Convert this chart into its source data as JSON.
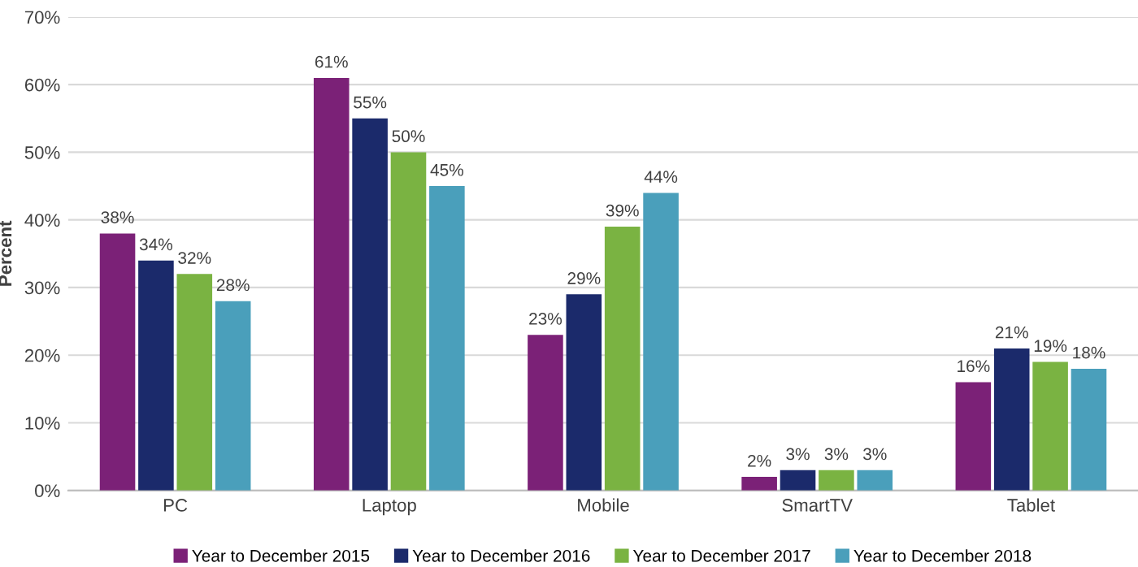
{
  "chart_data": {
    "type": "bar",
    "ylabel": "Percent",
    "categories": [
      "PC",
      "Laptop",
      "Mobile",
      "SmartTV",
      "Tablet"
    ],
    "series": [
      {
        "name": "Year to December 2015",
        "color": "#7b2177",
        "values": [
          38,
          61,
          23,
          2,
          16
        ],
        "value_labels": [
          "38%",
          "61%",
          "23%",
          "2%",
          "16%"
        ]
      },
      {
        "name": "Year to December 2016",
        "color": "#1b2a6b",
        "values": [
          34,
          55,
          29,
          3,
          21
        ],
        "value_labels": [
          "34%",
          "55%",
          "29%",
          "3%",
          "21%"
        ]
      },
      {
        "name": "Year to December 2017",
        "color": "#7ab342",
        "values": [
          32,
          50,
          39,
          3,
          19
        ],
        "value_labels": [
          "32%",
          "50%",
          "39%",
          "3%",
          "19%"
        ]
      },
      {
        "name": "Year to December 2018",
        "color": "#4a9fbb",
        "values": [
          28,
          45,
          44,
          3,
          18
        ],
        "value_labels": [
          "28%",
          "45%",
          "44%",
          "3%",
          "18%"
        ]
      }
    ],
    "ylim": [
      0,
      70
    ],
    "yticks": [
      {
        "value": 0,
        "label": "0%"
      },
      {
        "value": 10,
        "label": "10%"
      },
      {
        "value": 20,
        "label": "20%"
      },
      {
        "value": 30,
        "label": "30%"
      },
      {
        "value": 40,
        "label": "40%"
      },
      {
        "value": 50,
        "label": "50%"
      },
      {
        "value": 60,
        "label": "60%"
      },
      {
        "value": 70,
        "label": "70%"
      }
    ],
    "grid": "y",
    "legend": "bottom"
  }
}
